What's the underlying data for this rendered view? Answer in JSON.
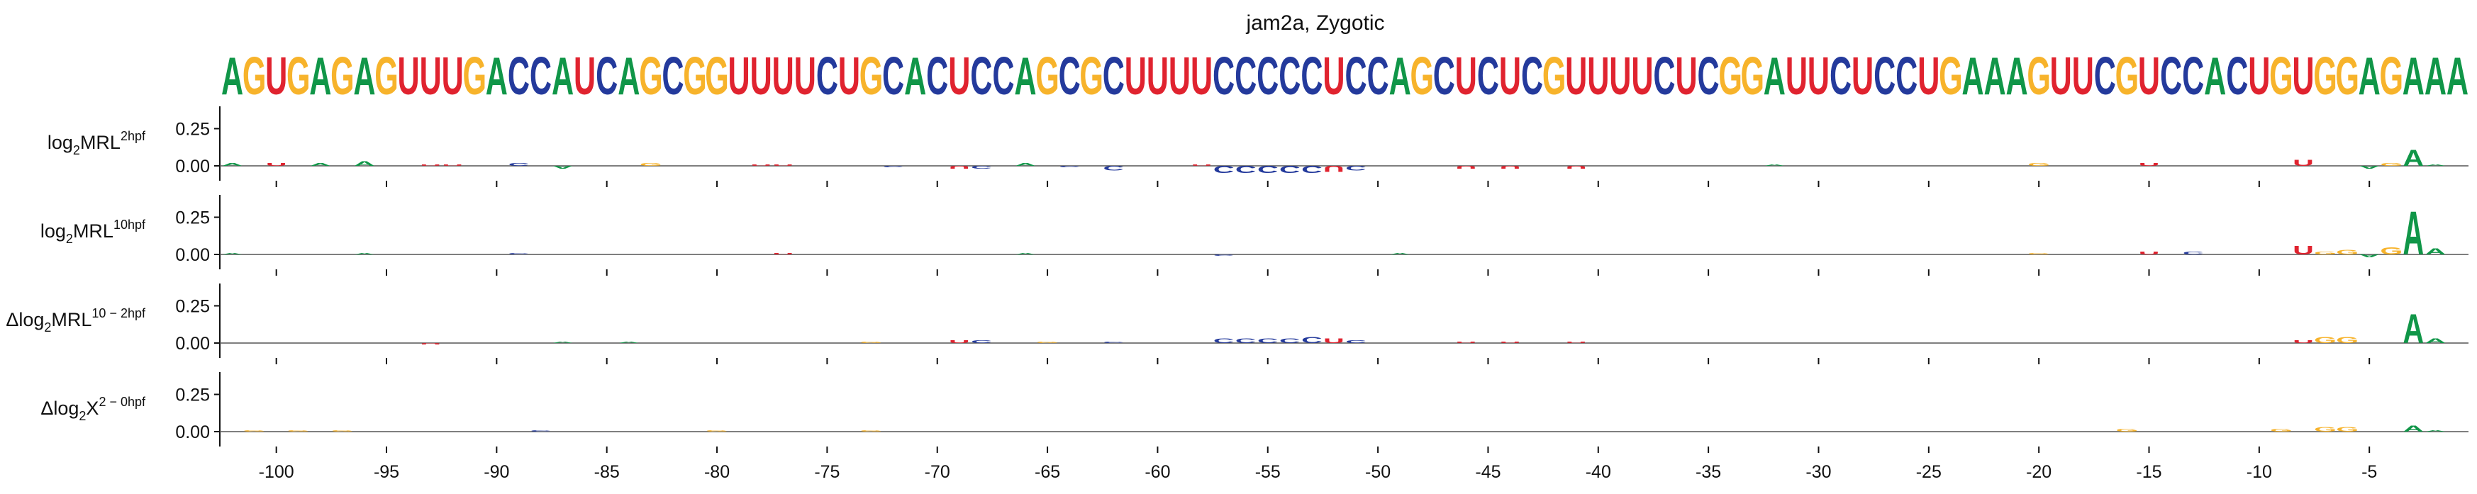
{
  "chart_data": {
    "type": "sequence-logo",
    "title": "jam2a, Zygotic",
    "sequence": "AGUGAGAGUUUGACCAUCAGCGGUUUUCUGCACUCCAGCGCUUUUCCCCCUCCAGCUCUCGUUUUCUCGGAUUCUCCUGAAAGUUCGUCCACUGUGGAGAAA",
    "position_start": -102,
    "position_end": -2,
    "x_ticks": [
      -100,
      -95,
      -90,
      -85,
      -80,
      -75,
      -70,
      -65,
      -60,
      -55,
      -50,
      -45,
      -40,
      -35,
      -30,
      -25,
      -20,
      -15,
      -10,
      -5
    ],
    "x_tick_labels": [
      "-100",
      "-95",
      "-90",
      "-85",
      "-80",
      "-75",
      "-70",
      "-65",
      "-60",
      "-55",
      "-50",
      "-45",
      "-40",
      "-35",
      "-30",
      "-25",
      "-20",
      "-15",
      "-10",
      "-5"
    ],
    "y_ticks": [
      0.0,
      0.25
    ],
    "y_tick_labels": [
      "0.00",
      "0.25"
    ],
    "ylim": [
      -0.1,
      0.4
    ],
    "colors": {
      "A": "#109648",
      "C": "#243a9c",
      "G": "#f7b32b",
      "U": "#e0232f"
    },
    "panels": [
      {
        "label": {
          "pre": "log",
          "sub": "2",
          "mid": "MRL",
          "sup": "2hpf"
        },
        "contributions": [
          {
            "pos": -102,
            "v": 0.02
          },
          {
            "pos": -100,
            "v": 0.02
          },
          {
            "pos": -98,
            "v": 0.02
          },
          {
            "pos": -96,
            "v": 0.03
          },
          {
            "pos": -93,
            "v": 0.01
          },
          {
            "pos": -92,
            "v": 0.01
          },
          {
            "pos": -89,
            "v": 0.02
          },
          {
            "pos": -87,
            "v": -0.02
          },
          {
            "pos": -83,
            "v": 0.02
          },
          {
            "pos": -78,
            "v": 0.01
          },
          {
            "pos": -77,
            "v": 0.01
          },
          {
            "pos": -72,
            "v": -0.01
          },
          {
            "pos": -69,
            "v": -0.02
          },
          {
            "pos": -68,
            "v": -0.02
          },
          {
            "pos": -66,
            "v": 0.02
          },
          {
            "pos": -64,
            "v": -0.01
          },
          {
            "pos": -62,
            "v": -0.03
          },
          {
            "pos": -58,
            "v": 0.01
          },
          {
            "pos": -57,
            "v": -0.05
          },
          {
            "pos": -56,
            "v": -0.05
          },
          {
            "pos": -55,
            "v": -0.05
          },
          {
            "pos": -54,
            "v": -0.05
          },
          {
            "pos": -53,
            "v": -0.05
          },
          {
            "pos": -52,
            "v": -0.04
          },
          {
            "pos": -51,
            "v": -0.03
          },
          {
            "pos": -46,
            "v": -0.02
          },
          {
            "pos": -44,
            "v": -0.02
          },
          {
            "pos": -41,
            "v": -0.02
          },
          {
            "pos": -32,
            "v": 0.01
          },
          {
            "pos": -20,
            "v": 0.02
          },
          {
            "pos": -15,
            "v": 0.02
          },
          {
            "pos": -8,
            "v": 0.04
          },
          {
            "pos": -5,
            "v": -0.02
          },
          {
            "pos": -4,
            "v": 0.02
          },
          {
            "pos": -3,
            "v": 0.11
          },
          {
            "pos": -2,
            "v": 0.01
          }
        ]
      },
      {
        "label": {
          "pre": "log",
          "sub": "2",
          "mid": "MRL",
          "sup": "10hpf"
        },
        "contributions": [
          {
            "pos": -102,
            "v": 0.01
          },
          {
            "pos": -96,
            "v": 0.01
          },
          {
            "pos": -89,
            "v": 0.01
          },
          {
            "pos": -77,
            "v": 0.01
          },
          {
            "pos": -66,
            "v": 0.01
          },
          {
            "pos": -57,
            "v": -0.01
          },
          {
            "pos": -49,
            "v": 0.01
          },
          {
            "pos": -20,
            "v": 0.01
          },
          {
            "pos": -15,
            "v": 0.02
          },
          {
            "pos": -13,
            "v": 0.02
          },
          {
            "pos": -8,
            "v": 0.06
          },
          {
            "pos": -7,
            "v": 0.02
          },
          {
            "pos": -6,
            "v": 0.03
          },
          {
            "pos": -5,
            "v": -0.02
          },
          {
            "pos": -4,
            "v": 0.05
          },
          {
            "pos": -3,
            "v": 0.3
          },
          {
            "pos": -2,
            "v": 0.04
          }
        ]
      },
      {
        "label": {
          "pre": "Δlog",
          "sub": "2",
          "mid": "MRL",
          "sup": "10 − 2hpf"
        },
        "contributions": [
          {
            "pos": -93,
            "v": -0.01
          },
          {
            "pos": -87,
            "v": 0.01
          },
          {
            "pos": -84,
            "v": 0.01
          },
          {
            "pos": -73,
            "v": 0.01
          },
          {
            "pos": -69,
            "v": 0.02
          },
          {
            "pos": -68,
            "v": 0.02
          },
          {
            "pos": -65,
            "v": 0.01
          },
          {
            "pos": -62,
            "v": 0.01
          },
          {
            "pos": -57,
            "v": 0.03
          },
          {
            "pos": -56,
            "v": 0.03
          },
          {
            "pos": -55,
            "v": 0.03
          },
          {
            "pos": -54,
            "v": 0.03
          },
          {
            "pos": -53,
            "v": 0.04
          },
          {
            "pos": -52,
            "v": 0.03
          },
          {
            "pos": -51,
            "v": 0.02
          },
          {
            "pos": -46,
            "v": 0.01
          },
          {
            "pos": -44,
            "v": 0.01
          },
          {
            "pos": -41,
            "v": 0.01
          },
          {
            "pos": -8,
            "v": 0.02
          },
          {
            "pos": -7,
            "v": 0.04
          },
          {
            "pos": -6,
            "v": 0.04
          },
          {
            "pos": -3,
            "v": 0.2
          },
          {
            "pos": -2,
            "v": 0.03
          }
        ]
      },
      {
        "label": {
          "pre": "Δlog",
          "sub": "2",
          "mid": "X",
          "sup": "2 − 0hpf"
        },
        "contributions": [
          {
            "pos": -101,
            "v": 0.01
          },
          {
            "pos": -99,
            "v": 0.01
          },
          {
            "pos": -97,
            "v": 0.01
          },
          {
            "pos": -88,
            "v": 0.01
          },
          {
            "pos": -80,
            "v": 0.01
          },
          {
            "pos": -73,
            "v": 0.01
          },
          {
            "pos": -16,
            "v": 0.02
          },
          {
            "pos": -9,
            "v": 0.02
          },
          {
            "pos": -7,
            "v": 0.03
          },
          {
            "pos": -6,
            "v": 0.03
          },
          {
            "pos": -3,
            "v": 0.04
          },
          {
            "pos": -2,
            "v": 0.01
          }
        ]
      }
    ]
  }
}
